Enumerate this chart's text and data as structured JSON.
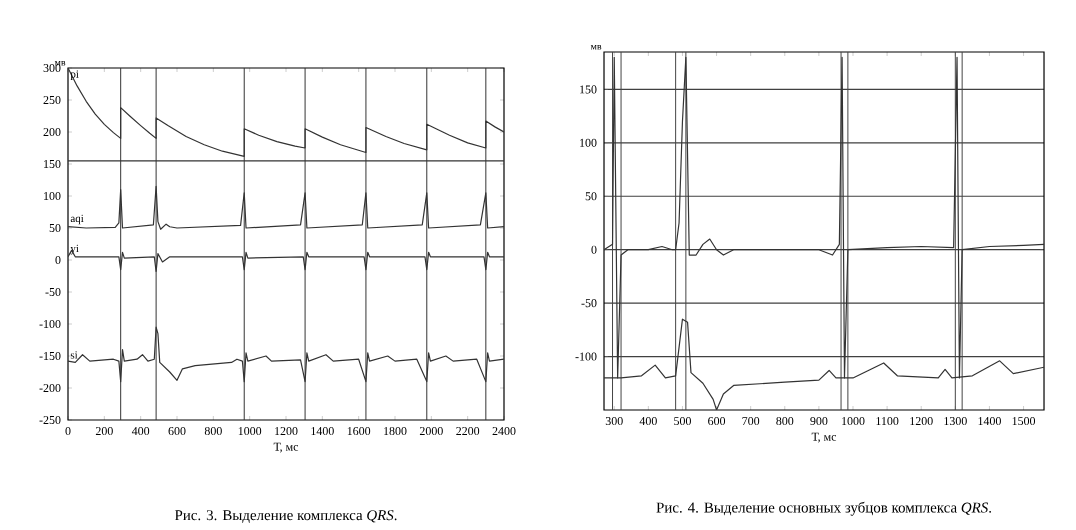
{
  "chart_data": [
    {
      "type": "line",
      "title": "Рис. 3. Выделение комплекса *QRS*.",
      "xlabel": "Т, мс",
      "ylabel": "мв",
      "xlim": [
        0,
        2400
      ],
      "ylim": [
        -250,
        300
      ],
      "xticks": [
        0,
        200,
        400,
        600,
        800,
        1000,
        1200,
        1400,
        1600,
        1800,
        2000,
        2200,
        2400
      ],
      "yticks": [
        -250,
        -200,
        -150,
        -100,
        -50,
        0,
        50,
        100,
        150,
        200,
        250,
        300
      ],
      "grid": false,
      "legend": false,
      "marker": "none",
      "line_style": "solid",
      "ref_lines": [
        {
          "axis": "y",
          "value": 155,
          "color": "#333333"
        },
        {
          "axis": "x",
          "value": 290,
          "color": "#333333"
        },
        {
          "axis": "x",
          "value": 485,
          "color": "#333333"
        },
        {
          "axis": "x",
          "value": 970,
          "color": "#333333"
        },
        {
          "axis": "x",
          "value": 1305,
          "color": "#333333"
        },
        {
          "axis": "x",
          "value": 1640,
          "color": "#333333"
        },
        {
          "axis": "x",
          "value": 1975,
          "color": "#333333"
        },
        {
          "axis": "x",
          "value": 2300,
          "color": "#333333"
        }
      ],
      "series": [
        {
          "name": "pi",
          "color": "#333333",
          "x": [
            0,
            50,
            100,
            150,
            200,
            250,
            290,
            290,
            340,
            400,
            450,
            485,
            485,
            550,
            650,
            750,
            850,
            970,
            970,
            1050,
            1150,
            1250,
            1305,
            1305,
            1400,
            1500,
            1640,
            1640,
            1750,
            1850,
            1975,
            1975,
            2100,
            2200,
            2300,
            2300,
            2350,
            2400
          ],
          "values": [
            300,
            272,
            248,
            228,
            212,
            199,
            190,
            238,
            225,
            210,
            198,
            190,
            222,
            210,
            193,
            180,
            170,
            162,
            205,
            195,
            185,
            178,
            175,
            205,
            192,
            180,
            168,
            207,
            193,
            182,
            172,
            212,
            195,
            183,
            175,
            217,
            208,
            200
          ]
        },
        {
          "name": "aqi",
          "color": "#333333",
          "x": [
            0,
            100,
            260,
            280,
            290,
            300,
            470,
            485,
            495,
            510,
            540,
            560,
            600,
            950,
            970,
            980,
            1280,
            1305,
            1315,
            1620,
            1640,
            1650,
            1950,
            1975,
            1985,
            2270,
            2300,
            2310,
            2400
          ],
          "values": [
            52,
            50,
            51,
            58,
            110,
            50,
            55,
            115,
            60,
            48,
            56,
            52,
            50,
            54,
            105,
            50,
            55,
            105,
            50,
            55,
            105,
            50,
            55,
            105,
            50,
            55,
            105,
            50,
            52
          ]
        },
        {
          "name": "yi",
          "color": "#333333",
          "x": [
            0,
            20,
            40,
            280,
            290,
            300,
            310,
            475,
            485,
            495,
            520,
            560,
            960,
            970,
            980,
            990,
            1295,
            1305,
            1315,
            1325,
            1630,
            1640,
            1650,
            1660,
            1965,
            1975,
            1985,
            1995,
            2290,
            2300,
            2310,
            2320,
            2400
          ],
          "values": [
            5,
            15,
            5,
            5,
            -15,
            12,
            3,
            5,
            -18,
            10,
            -3,
            5,
            5,
            -15,
            12,
            3,
            5,
            -15,
            12,
            5,
            5,
            -15,
            12,
            5,
            5,
            -15,
            12,
            5,
            5,
            -15,
            12,
            5,
            5
          ]
        },
        {
          "name": "si",
          "color": "#333333",
          "x": [
            0,
            40,
            80,
            120,
            250,
            280,
            290,
            300,
            310,
            380,
            410,
            440,
            475,
            485,
            495,
            505,
            560,
            600,
            630,
            700,
            900,
            930,
            960,
            970,
            980,
            990,
            1090,
            1120,
            1280,
            1305,
            1315,
            1325,
            1420,
            1460,
            1600,
            1640,
            1650,
            1660,
            1760,
            1800,
            1920,
            1975,
            1985,
            1995,
            2080,
            2120,
            2250,
            2300,
            2310,
            2320,
            2400
          ],
          "values": [
            -158,
            -160,
            -148,
            -158,
            -155,
            -158,
            -190,
            -140,
            -158,
            -155,
            -148,
            -158,
            -155,
            -105,
            -115,
            -160,
            -175,
            -188,
            -170,
            -165,
            -160,
            -155,
            -158,
            -190,
            -145,
            -158,
            -150,
            -158,
            -156,
            -190,
            -145,
            -158,
            -148,
            -158,
            -155,
            -190,
            -145,
            -158,
            -150,
            -158,
            -155,
            -190,
            -145,
            -158,
            -150,
            -158,
            -155,
            -190,
            -145,
            -158,
            -155
          ]
        }
      ]
    },
    {
      "type": "line",
      "title": "Рис. 4. Выделение основных зубцов комплекса *QRS*.",
      "xlabel": "Т, мс",
      "ylabel": "мв",
      "xlim": [
        270,
        1560
      ],
      "ylim": [
        -150,
        185
      ],
      "xticks": [
        300,
        400,
        500,
        600,
        700,
        800,
        900,
        1000,
        1100,
        1200,
        1300,
        1400,
        1500
      ],
      "yticks": [
        -100,
        -50,
        0,
        50,
        100,
        150
      ],
      "grid": "y",
      "legend": false,
      "marker": "none",
      "line_style": "solid",
      "ref_lines": [
        {
          "axis": "x",
          "value": 295,
          "color": "#444444"
        },
        {
          "axis": "x",
          "value": 320,
          "color": "#444444"
        },
        {
          "axis": "x",
          "value": 480,
          "color": "#444444"
        },
        {
          "axis": "x",
          "value": 510,
          "color": "#444444"
        },
        {
          "axis": "x",
          "value": 965,
          "color": "#444444"
        },
        {
          "axis": "x",
          "value": 985,
          "color": "#444444"
        },
        {
          "axis": "x",
          "value": 1300,
          "color": "#444444"
        },
        {
          "axis": "x",
          "value": 1320,
          "color": "#444444"
        }
      ],
      "series": [
        {
          "color": "#333333",
          "x": [
            270,
            295,
            300,
            310,
            320,
            340,
            400,
            440,
            470,
            480,
            490,
            500,
            510,
            520,
            540,
            560,
            580,
            600,
            620,
            650,
            900,
            940,
            960,
            968,
            975,
            985,
            1100,
            1200,
            1295,
            1305,
            1312,
            1320,
            1400,
            1500,
            1560
          ],
          "values": [
            0,
            5,
            180,
            -120,
            -5,
            0,
            0,
            3,
            0,
            0,
            25,
            120,
            180,
            -5,
            -5,
            5,
            10,
            0,
            -5,
            0,
            0,
            -5,
            5,
            180,
            -120,
            0,
            2,
            3,
            2,
            180,
            -120,
            0,
            3,
            4,
            5
          ]
        },
        {
          "color": "#333333",
          "x": [
            270,
            300,
            320,
            380,
            420,
            450,
            480,
            500,
            515,
            525,
            560,
            590,
            600,
            620,
            650,
            800,
            900,
            930,
            950,
            1000,
            1090,
            1130,
            1250,
            1270,
            1290,
            1350,
            1430,
            1470,
            1560
          ],
          "values": [
            -120,
            -120,
            -120,
            -118,
            -108,
            -120,
            -118,
            -65,
            -68,
            -115,
            -125,
            -140,
            -150,
            -135,
            -127,
            -124,
            -122,
            -113,
            -120,
            -120,
            -106,
            -118,
            -120,
            -112,
            -120,
            -118,
            -104,
            -116,
            -110
          ]
        }
      ]
    }
  ]
}
